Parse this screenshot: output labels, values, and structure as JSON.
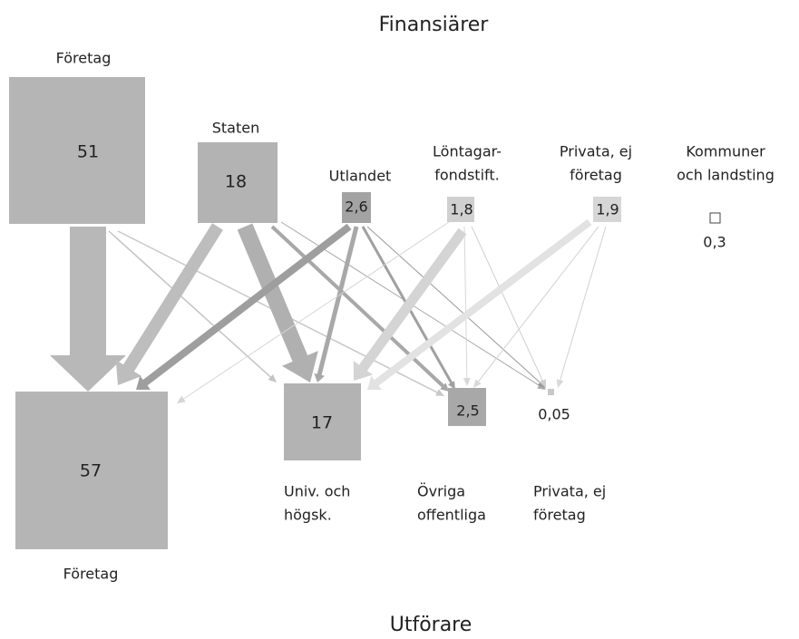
{
  "title": "Finansiärer",
  "footer": "Utförare",
  "funders": [
    {
      "label_lines": [
        "Företag"
      ],
      "value": "51"
    },
    {
      "label_lines": [
        "Staten"
      ],
      "value": "18"
    },
    {
      "label_lines": [
        "Utlandet"
      ],
      "value": "2,6"
    },
    {
      "label_lines": [
        "Löntagar-",
        "fondstift."
      ],
      "value": "1,8"
    },
    {
      "label_lines": [
        "Privata, ej",
        "företag"
      ],
      "value": "1,9"
    },
    {
      "label_lines": [
        "Kommuner",
        "och landsting"
      ],
      "value": "0,3"
    }
  ],
  "performers": [
    {
      "label_lines": [
        "Företag"
      ],
      "value": "57"
    },
    {
      "label_lines": [
        "Univ. och",
        "högsk."
      ],
      "value": "17"
    },
    {
      "label_lines": [
        "Övriga",
        "offentliga"
      ],
      "value": "2,5"
    },
    {
      "label_lines": [
        "Privata, ej",
        "företag"
      ],
      "value": "0,05"
    }
  ]
}
